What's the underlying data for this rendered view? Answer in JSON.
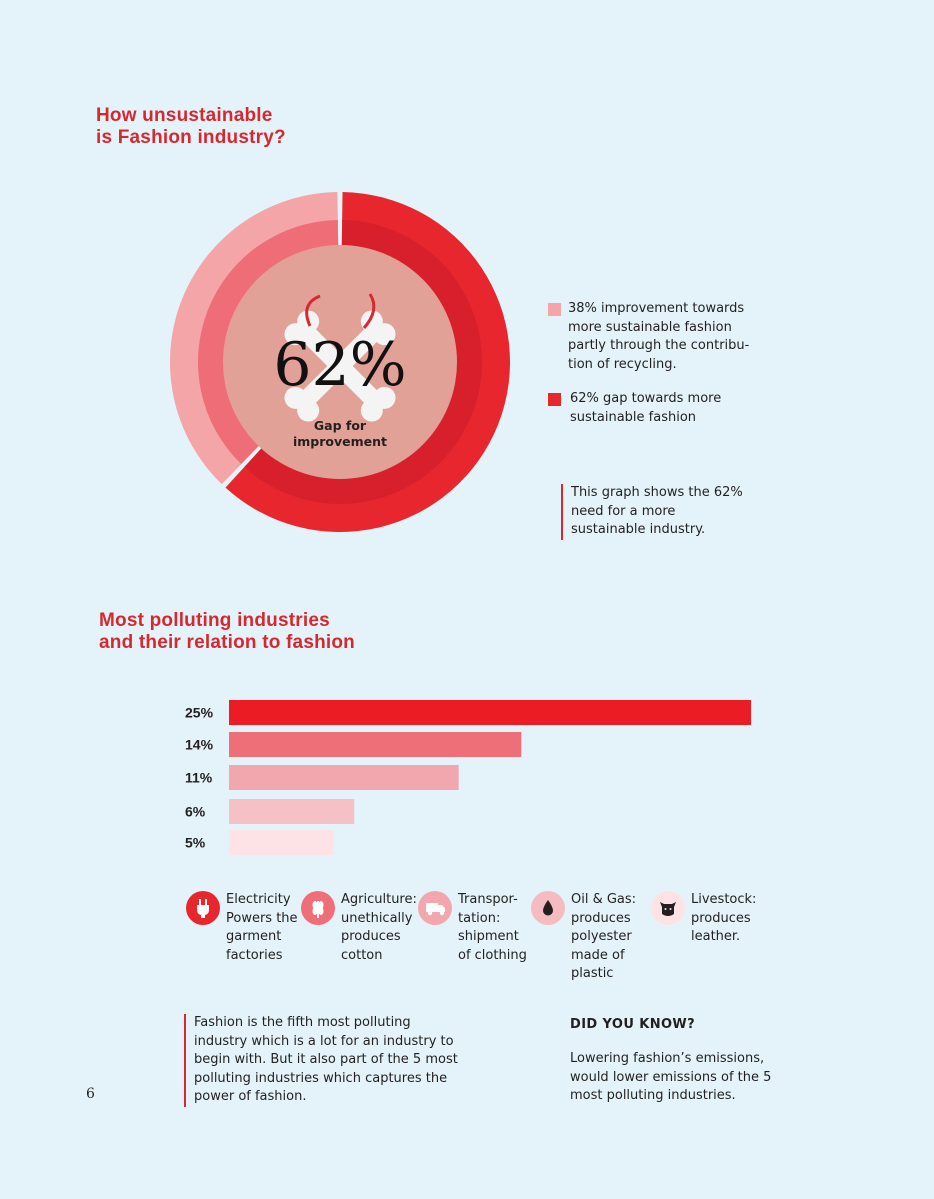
{
  "section1": {
    "title_lines": [
      "How unsustainable",
      "is Fashion industry?"
    ]
  },
  "donut": {
    "center_value": "62%",
    "center_label_lines": [
      "Gap for",
      "improvement"
    ]
  },
  "legend": [
    {
      "lines": [
        "38% improvement towards",
        "more sustainable fashion",
        "partly through the contribu-",
        "tion of recycling."
      ],
      "color": "#f4a5a8"
    },
    {
      "lines": [
        "62% gap towards more",
        "sustainable fashion"
      ],
      "color": "#e8262d"
    }
  ],
  "note1_lines": [
    "This graph shows the 62%",
    "need for a more",
    "sustainable industry."
  ],
  "section2": {
    "title_lines": [
      "Most polluting industries",
      "and their relation to fashion"
    ]
  },
  "icons": [
    {
      "name": "electricity",
      "lines": [
        "Electricity",
        "Powers the",
        "garment",
        "factories"
      ],
      "bg": "#e8262d",
      "fg": "#ffffff"
    },
    {
      "name": "agriculture",
      "lines": [
        "Agriculture:",
        "unethically",
        "produces",
        "cotton"
      ],
      "bg": "#ee6f77",
      "fg": "#ffffff"
    },
    {
      "name": "transportation",
      "lines": [
        "Transpor-",
        "tation:",
        "shipment",
        "of clothing"
      ],
      "bg": "#f2a7ae",
      "fg": "#ffffff"
    },
    {
      "name": "oil-gas",
      "lines": [
        "Oil & Gas:",
        "produces",
        "polyester",
        "made of",
        "plastic"
      ],
      "bg": "#f4bcc1",
      "fg": "#231f20"
    },
    {
      "name": "livestock",
      "lines": [
        "Livestock:",
        "produces",
        "leather."
      ],
      "bg": "#fde3e5",
      "fg": "#231f20"
    }
  ],
  "body_note_lines": [
    "Fashion is the fifth most polluting",
    "industry which is a lot for an industry to",
    "begin with. But it also part of the 5 most",
    "polluting industries which captures the",
    "power of fashion."
  ],
  "did_you_know": {
    "heading": "DID YOU KNOW?",
    "lines": [
      "Lowering fashion’s emissions,",
      "would lower emissions of the 5",
      "most polluting industries."
    ]
  },
  "page_number": "6",
  "chart_data": [
    {
      "type": "pie",
      "values": [
        62,
        38
      ],
      "labels": [
        "62% gap towards more sustainable fashion",
        "38% improvement towards more sustainable fashion partly through the contribution of recycling."
      ],
      "colors": [
        "#e8262d",
        "#f4a5a8"
      ]
    },
    {
      "type": "bar",
      "orientation": "horizontal",
      "categories": [
        "25%",
        "14%",
        "11%",
        "6%",
        "5%"
      ],
      "values": [
        25,
        14,
        11,
        6,
        5
      ],
      "colors": [
        "#ec1c24",
        "#ee6f77",
        "#f2a7ae",
        "#f6c1c6",
        "#fde3e6"
      ],
      "xlim": [
        0,
        25
      ]
    }
  ]
}
